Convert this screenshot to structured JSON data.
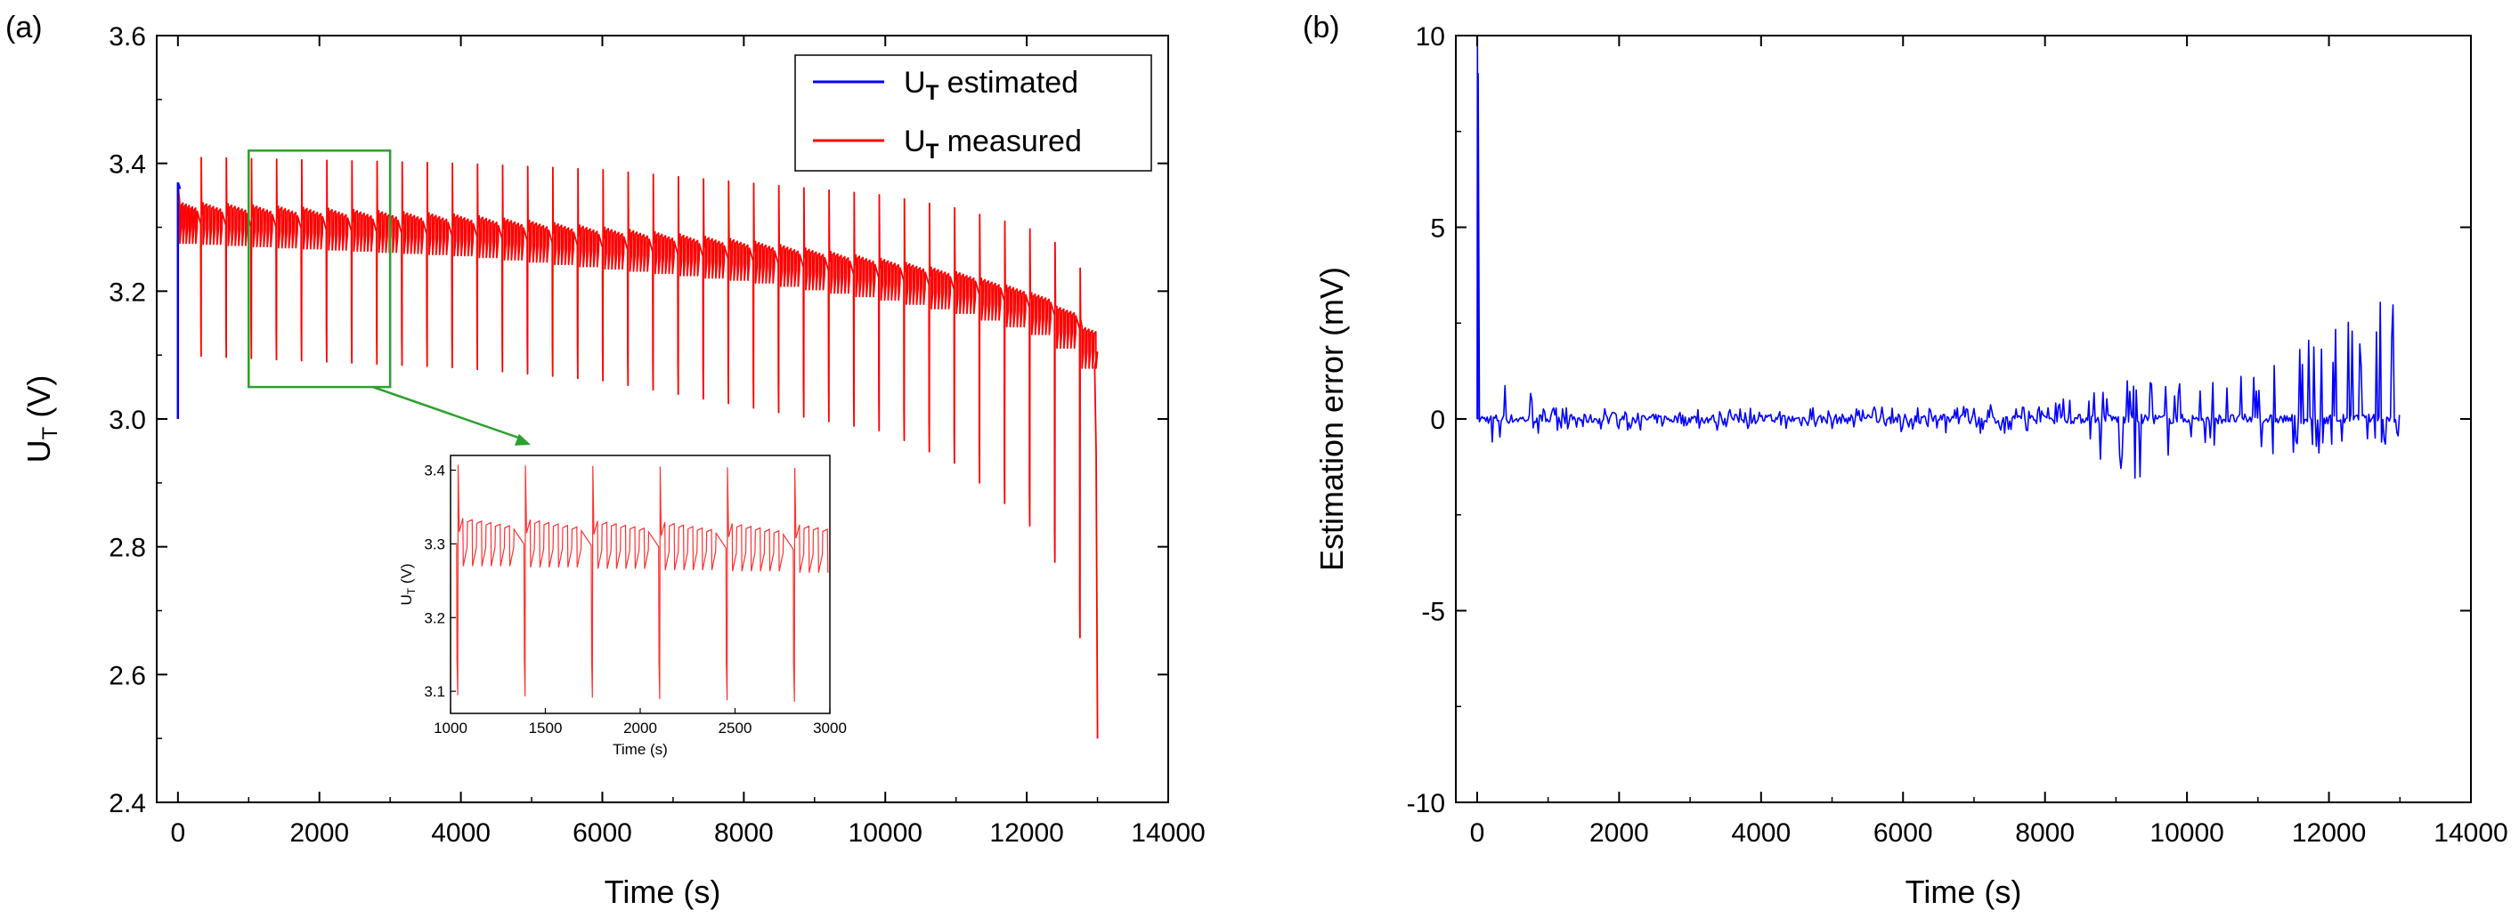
{
  "chart_data": [
    {
      "panel": "(a)",
      "type": "line",
      "xlabel": "Time (s)",
      "ylabel_main": "U",
      "ylabel_sub": "T",
      "ylabel_unit": " (V)",
      "xlim": [
        -300,
        14000
      ],
      "ylim": [
        2.4,
        3.6
      ],
      "xticks": [
        0,
        2000,
        4000,
        6000,
        8000,
        10000,
        12000,
        14000
      ],
      "yticks": [
        2.4,
        2.6,
        2.8,
        3.0,
        3.2,
        3.4,
        3.6
      ],
      "ytick_labels": [
        "2.4",
        "2.6",
        "2.8",
        "3.0",
        "3.2",
        "3.4",
        "3.6"
      ],
      "legend": {
        "placement": "top-right",
        "entries": [
          {
            "main": "U",
            "sub": "T",
            "rest": " estimated",
            "color": "#0000ff"
          },
          {
            "main": "U",
            "sub": "T",
            "rest": " measured",
            "color": "#ff0000"
          }
        ]
      },
      "series": [
        {
          "name": "U_T estimated",
          "color": "#0000ff",
          "description": "overlaps measured; visible only at start (3.0 V rising to 3.37 V at t=0)",
          "x": [
            0,
            0,
            30
          ],
          "y": [
            3.0,
            3.37,
            3.36
          ]
        },
        {
          "name": "U_T measured",
          "color": "#ff0000",
          "pulse_period_s": 355,
          "first_pulse_s": 330,
          "end_time_s": 13000,
          "envelope_time_s": [
            0,
            2000,
            4000,
            6000,
            8000,
            10000,
            11000,
            12000,
            12500,
            12800,
            13000
          ],
          "rest_level_V": [
            3.31,
            3.3,
            3.29,
            3.27,
            3.25,
            3.22,
            3.2,
            3.17,
            3.14,
            3.11,
            3.06
          ],
          "spike_high_V": [
            3.41,
            3.405,
            3.4,
            3.39,
            3.37,
            3.35,
            3.33,
            3.3,
            3.27,
            3.23,
            3.15
          ],
          "spike_low_V": [
            3.1,
            3.09,
            3.08,
            3.06,
            3.02,
            2.98,
            2.93,
            2.84,
            2.76,
            2.64,
            2.5
          ]
        }
      ],
      "zoom_box": {
        "x_range": [
          1000,
          3000
        ],
        "y_range": [
          3.05,
          3.42
        ],
        "color": "#2ca02c"
      },
      "inset": {
        "xlabel": "Time (s)",
        "ylabel_main": "U",
        "ylabel_sub": "T",
        "ylabel_unit": " (V)",
        "xlim": [
          1000,
          3000
        ],
        "ylim": [
          3.07,
          3.42
        ],
        "xticks": [
          1000,
          1500,
          2000,
          2500,
          3000
        ],
        "yticks": [
          3.1,
          3.2,
          3.3,
          3.4
        ],
        "ytick_labels": [
          "3.1",
          "3.2",
          "3.3",
          "3.4"
        ]
      }
    },
    {
      "panel": "(b)",
      "type": "line",
      "xlabel": "Time (s)",
      "ylabel": "Estimation error (mV)",
      "xlim": [
        -300,
        14000
      ],
      "ylim": [
        -10,
        10
      ],
      "xticks": [
        0,
        2000,
        4000,
        6000,
        8000,
        10000,
        12000,
        14000
      ],
      "yticks": [
        -10,
        -5,
        0,
        5,
        10
      ],
      "series": [
        {
          "name": "Estimation error",
          "color": "#0000ff",
          "initial_spike_mV": 10,
          "end_time_s": 13000,
          "envelope_time_s": [
            0,
            200,
            1000,
            4000,
            8000,
            9400,
            10000,
            11000,
            12000,
            12500,
            12900,
            13000
          ],
          "max_error_mV": [
            10,
            1.7,
            0.3,
            0.3,
            0.4,
            1.3,
            0.9,
            1.3,
            2.4,
            2.8,
            3.9,
            0.7
          ],
          "min_error_mV": [
            -0.5,
            -0.8,
            -0.3,
            -0.3,
            -0.4,
            -1.7,
            -0.6,
            -0.9,
            -1.0,
            -0.9,
            -1.1,
            -0.3
          ]
        }
      ]
    }
  ]
}
